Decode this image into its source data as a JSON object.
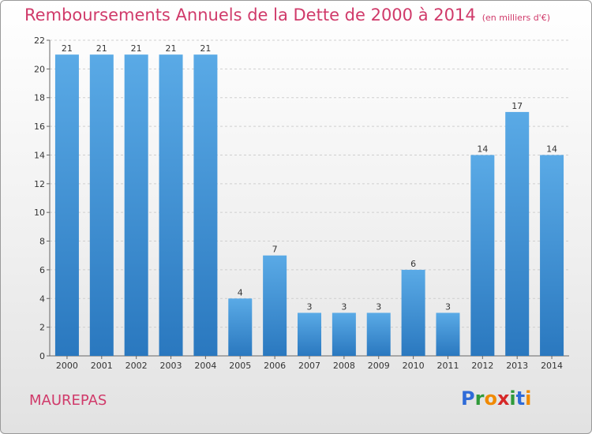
{
  "header": {
    "title": "Remboursements Annuels de la Dette de 2000 à 2014",
    "unit": "(en milliers d'€)"
  },
  "footer": {
    "commune": "MAUREPAS",
    "logo": {
      "letters": [
        "P",
        "r",
        "o",
        "x",
        "i",
        "t",
        "i"
      ],
      "colors": [
        "#2f6bd8",
        "#2f9a3a",
        "#f08a00",
        "#d62828",
        "#2f9a3a",
        "#2f6bd8",
        "#f08a00"
      ]
    }
  },
  "colors": {
    "bar_light": "#5aaae6",
    "bar_dark": "#2a78bf",
    "accent": "#d03a6a"
  },
  "chart_data": {
    "type": "bar",
    "categories": [
      "2000",
      "2001",
      "2002",
      "2003",
      "2004",
      "2005",
      "2006",
      "2007",
      "2008",
      "2009",
      "2010",
      "2011",
      "2012",
      "2013",
      "2014"
    ],
    "values": [
      21,
      21,
      21,
      21,
      21,
      4,
      7,
      3,
      3,
      3,
      6,
      3,
      14,
      17,
      14
    ],
    "ylim": [
      0,
      22
    ],
    "yticks": [
      0,
      2,
      4,
      6,
      8,
      10,
      12,
      14,
      16,
      18,
      20,
      22
    ],
    "grid": true,
    "data_labels": true
  }
}
